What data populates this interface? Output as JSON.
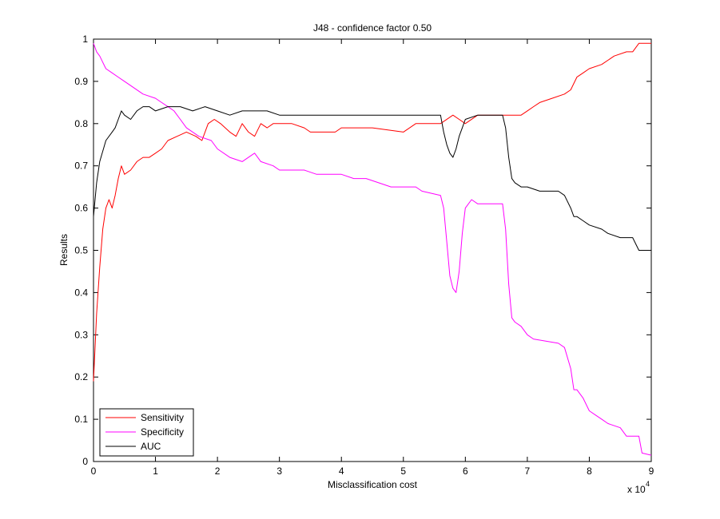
{
  "chart_data": {
    "type": "line",
    "title": "J48 - confidence factor 0.50",
    "xlabel": "Misclassification cost",
    "ylabel": "Results",
    "x_multiplier_label": "x 10",
    "x_multiplier_exponent": "4",
    "xlim": [
      0,
      9
    ],
    "ylim": [
      0,
      1
    ],
    "xticks": [
      "0",
      "1",
      "2",
      "3",
      "4",
      "5",
      "6",
      "7",
      "8",
      "9"
    ],
    "yticks": [
      "0",
      "0.1",
      "0.2",
      "0.3",
      "0.4",
      "0.5",
      "0.6",
      "0.7",
      "0.8",
      "0.9",
      "1"
    ],
    "grid": false,
    "legend_position": "bottom-left",
    "series": [
      {
        "name": "Sensitivity",
        "color": "#ff0000",
        "points": [
          [
            0,
            0.19
          ],
          [
            0.05,
            0.35
          ],
          [
            0.1,
            0.46
          ],
          [
            0.15,
            0.55
          ],
          [
            0.2,
            0.6
          ],
          [
            0.25,
            0.62
          ],
          [
            0.3,
            0.6
          ],
          [
            0.35,
            0.63
          ],
          [
            0.4,
            0.67
          ],
          [
            0.45,
            0.7
          ],
          [
            0.5,
            0.68
          ],
          [
            0.6,
            0.69
          ],
          [
            0.7,
            0.71
          ],
          [
            0.8,
            0.72
          ],
          [
            0.9,
            0.72
          ],
          [
            1.0,
            0.73
          ],
          [
            1.1,
            0.74
          ],
          [
            1.2,
            0.76
          ],
          [
            1.35,
            0.77
          ],
          [
            1.5,
            0.78
          ],
          [
            1.65,
            0.77
          ],
          [
            1.75,
            0.76
          ],
          [
            1.85,
            0.8
          ],
          [
            1.95,
            0.81
          ],
          [
            2.05,
            0.8
          ],
          [
            2.2,
            0.78
          ],
          [
            2.3,
            0.77
          ],
          [
            2.4,
            0.8
          ],
          [
            2.5,
            0.78
          ],
          [
            2.6,
            0.77
          ],
          [
            2.7,
            0.8
          ],
          [
            2.8,
            0.79
          ],
          [
            2.9,
            0.8
          ],
          [
            3.0,
            0.8
          ],
          [
            3.2,
            0.8
          ],
          [
            3.4,
            0.79
          ],
          [
            3.5,
            0.78
          ],
          [
            3.7,
            0.78
          ],
          [
            3.9,
            0.78
          ],
          [
            4.0,
            0.79
          ],
          [
            4.5,
            0.79
          ],
          [
            5.0,
            0.78
          ],
          [
            5.2,
            0.8
          ],
          [
            5.6,
            0.8
          ],
          [
            5.8,
            0.82
          ],
          [
            5.9,
            0.81
          ],
          [
            6.0,
            0.8
          ],
          [
            6.2,
            0.82
          ],
          [
            6.6,
            0.82
          ],
          [
            6.9,
            0.82
          ],
          [
            7.0,
            0.83
          ],
          [
            7.1,
            0.84
          ],
          [
            7.2,
            0.85
          ],
          [
            7.4,
            0.86
          ],
          [
            7.6,
            0.87
          ],
          [
            7.7,
            0.88
          ],
          [
            7.8,
            0.91
          ],
          [
            7.9,
            0.92
          ],
          [
            8.0,
            0.93
          ],
          [
            8.2,
            0.94
          ],
          [
            8.4,
            0.96
          ],
          [
            8.6,
            0.97
          ],
          [
            8.7,
            0.97
          ],
          [
            8.8,
            0.99
          ],
          [
            9.0,
            0.99
          ]
        ]
      },
      {
        "name": "Specificity",
        "color": "#ff00ff",
        "points": [
          [
            0,
            0.99
          ],
          [
            0.05,
            0.97
          ],
          [
            0.1,
            0.96
          ],
          [
            0.2,
            0.93
          ],
          [
            0.3,
            0.92
          ],
          [
            0.4,
            0.91
          ],
          [
            0.5,
            0.9
          ],
          [
            0.6,
            0.89
          ],
          [
            0.8,
            0.87
          ],
          [
            1.0,
            0.86
          ],
          [
            1.1,
            0.85
          ],
          [
            1.2,
            0.84
          ],
          [
            1.3,
            0.83
          ],
          [
            1.4,
            0.81
          ],
          [
            1.5,
            0.79
          ],
          [
            1.7,
            0.77
          ],
          [
            1.9,
            0.76
          ],
          [
            2.0,
            0.74
          ],
          [
            2.2,
            0.72
          ],
          [
            2.4,
            0.71
          ],
          [
            2.5,
            0.72
          ],
          [
            2.6,
            0.73
          ],
          [
            2.7,
            0.71
          ],
          [
            2.9,
            0.7
          ],
          [
            3.0,
            0.69
          ],
          [
            3.2,
            0.69
          ],
          [
            3.4,
            0.69
          ],
          [
            3.6,
            0.68
          ],
          [
            4.0,
            0.68
          ],
          [
            4.2,
            0.67
          ],
          [
            4.4,
            0.67
          ],
          [
            4.6,
            0.66
          ],
          [
            4.8,
            0.65
          ],
          [
            5.2,
            0.65
          ],
          [
            5.3,
            0.64
          ],
          [
            5.6,
            0.63
          ],
          [
            5.65,
            0.6
          ],
          [
            5.7,
            0.52
          ],
          [
            5.75,
            0.44
          ],
          [
            5.8,
            0.41
          ],
          [
            5.85,
            0.4
          ],
          [
            5.9,
            0.45
          ],
          [
            5.95,
            0.54
          ],
          [
            6.0,
            0.6
          ],
          [
            6.1,
            0.62
          ],
          [
            6.2,
            0.61
          ],
          [
            6.6,
            0.61
          ],
          [
            6.65,
            0.55
          ],
          [
            6.7,
            0.42
          ],
          [
            6.75,
            0.34
          ],
          [
            6.8,
            0.33
          ],
          [
            6.9,
            0.32
          ],
          [
            7.0,
            0.3
          ],
          [
            7.1,
            0.29
          ],
          [
            7.5,
            0.28
          ],
          [
            7.6,
            0.27
          ],
          [
            7.7,
            0.22
          ],
          [
            7.75,
            0.17
          ],
          [
            7.8,
            0.17
          ],
          [
            7.9,
            0.15
          ],
          [
            8.0,
            0.12
          ],
          [
            8.1,
            0.11
          ],
          [
            8.2,
            0.1
          ],
          [
            8.3,
            0.09
          ],
          [
            8.5,
            0.08
          ],
          [
            8.6,
            0.06
          ],
          [
            8.8,
            0.06
          ],
          [
            8.85,
            0.02
          ],
          [
            9.0,
            0.015
          ]
        ]
      },
      {
        "name": "AUC",
        "color": "#000000",
        "points": [
          [
            0,
            0.58
          ],
          [
            0.05,
            0.66
          ],
          [
            0.1,
            0.71
          ],
          [
            0.2,
            0.76
          ],
          [
            0.3,
            0.78
          ],
          [
            0.35,
            0.79
          ],
          [
            0.4,
            0.81
          ],
          [
            0.45,
            0.83
          ],
          [
            0.5,
            0.82
          ],
          [
            0.6,
            0.81
          ],
          [
            0.7,
            0.83
          ],
          [
            0.8,
            0.84
          ],
          [
            0.9,
            0.84
          ],
          [
            1.0,
            0.83
          ],
          [
            1.2,
            0.84
          ],
          [
            1.4,
            0.84
          ],
          [
            1.6,
            0.83
          ],
          [
            1.8,
            0.84
          ],
          [
            2.0,
            0.83
          ],
          [
            2.2,
            0.82
          ],
          [
            2.4,
            0.83
          ],
          [
            2.6,
            0.83
          ],
          [
            2.8,
            0.83
          ],
          [
            3.0,
            0.82
          ],
          [
            3.5,
            0.82
          ],
          [
            4.0,
            0.82
          ],
          [
            4.5,
            0.82
          ],
          [
            5.0,
            0.82
          ],
          [
            5.6,
            0.82
          ],
          [
            5.65,
            0.78
          ],
          [
            5.7,
            0.75
          ],
          [
            5.75,
            0.73
          ],
          [
            5.8,
            0.72
          ],
          [
            5.85,
            0.74
          ],
          [
            5.9,
            0.77
          ],
          [
            5.95,
            0.79
          ],
          [
            6.0,
            0.81
          ],
          [
            6.2,
            0.82
          ],
          [
            6.6,
            0.82
          ],
          [
            6.65,
            0.79
          ],
          [
            6.7,
            0.72
          ],
          [
            6.75,
            0.67
          ],
          [
            6.8,
            0.66
          ],
          [
            6.9,
            0.65
          ],
          [
            7.0,
            0.65
          ],
          [
            7.2,
            0.64
          ],
          [
            7.5,
            0.64
          ],
          [
            7.6,
            0.63
          ],
          [
            7.7,
            0.6
          ],
          [
            7.75,
            0.58
          ],
          [
            7.8,
            0.58
          ],
          [
            7.9,
            0.57
          ],
          [
            8.0,
            0.56
          ],
          [
            8.2,
            0.55
          ],
          [
            8.3,
            0.54
          ],
          [
            8.5,
            0.53
          ],
          [
            8.7,
            0.53
          ],
          [
            8.8,
            0.5
          ],
          [
            9.0,
            0.5
          ]
        ]
      }
    ]
  }
}
